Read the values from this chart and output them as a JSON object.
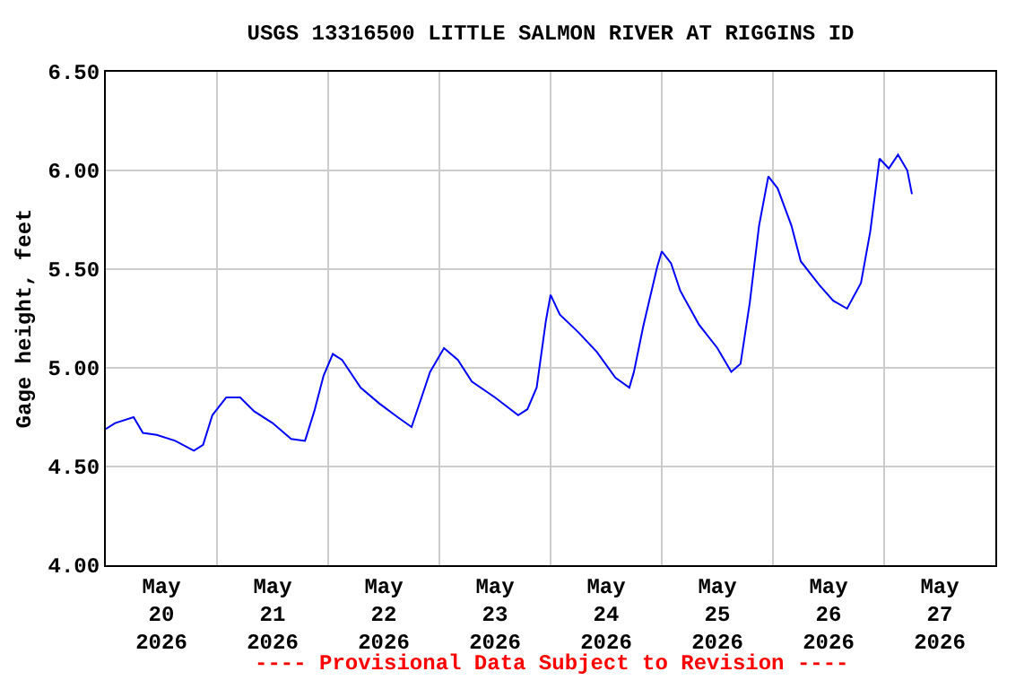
{
  "chart_data": {
    "type": "line",
    "title": "USGS 13316500 LITTLE SALMON RIVER AT RIGGINS ID",
    "ylabel": "Gage height, feet",
    "annotations": [
      "---- Provisional Data Subject to Revision ----"
    ],
    "x": [
      "2026-05-20T00:00",
      "2026-05-20T02:00",
      "2026-05-20T06:00",
      "2026-05-20T08:00",
      "2026-05-20T11:00",
      "2026-05-20T15:00",
      "2026-05-20T19:00",
      "2026-05-20T21:00",
      "2026-05-20T23:00",
      "2026-05-21T02:00",
      "2026-05-21T05:00",
      "2026-05-21T08:00",
      "2026-05-21T12:00",
      "2026-05-21T16:00",
      "2026-05-21T19:00",
      "2026-05-21T21:00",
      "2026-05-21T23:00",
      "2026-05-22T01:00",
      "2026-05-22T03:00",
      "2026-05-22T07:00",
      "2026-05-22T11:00",
      "2026-05-22T15:00",
      "2026-05-22T18:00",
      "2026-05-22T20:00",
      "2026-05-22T22:00",
      "2026-05-23T01:00",
      "2026-05-23T04:00",
      "2026-05-23T07:00",
      "2026-05-23T12:00",
      "2026-05-23T17:00",
      "2026-05-23T19:00",
      "2026-05-23T21:00",
      "2026-05-23T23:00",
      "2026-05-24T00:00",
      "2026-05-24T02:00",
      "2026-05-24T06:00",
      "2026-05-24T10:00",
      "2026-05-24T14:00",
      "2026-05-24T17:00",
      "2026-05-24T18:00",
      "2026-05-24T20:00",
      "2026-05-24T23:00",
      "2026-05-25T00:00",
      "2026-05-25T02:00",
      "2026-05-25T04:00",
      "2026-05-25T08:00",
      "2026-05-25T12:00",
      "2026-05-25T15:00",
      "2026-05-25T17:00",
      "2026-05-25T19:00",
      "2026-05-25T21:00",
      "2026-05-25T23:00",
      "2026-05-26T01:00",
      "2026-05-26T04:00",
      "2026-05-26T06:00",
      "2026-05-26T10:00",
      "2026-05-26T13:00",
      "2026-05-26T16:00",
      "2026-05-26T19:00",
      "2026-05-26T21:00",
      "2026-05-26T23:00",
      "2026-05-27T01:00",
      "2026-05-27T03:00",
      "2026-05-27T05:00",
      "2026-05-27T06:00"
    ],
    "series": [
      {
        "color": "#0000ff",
        "values": [
          4.69,
          4.72,
          4.75,
          4.67,
          4.66,
          4.63,
          4.58,
          4.61,
          4.76,
          4.85,
          4.85,
          4.78,
          4.72,
          4.64,
          4.63,
          4.78,
          4.96,
          5.07,
          5.04,
          4.9,
          4.82,
          4.75,
          4.7,
          4.84,
          4.98,
          5.1,
          5.04,
          4.93,
          4.85,
          4.76,
          4.79,
          4.9,
          5.24,
          5.37,
          5.27,
          5.18,
          5.08,
          4.95,
          4.9,
          4.98,
          5.21,
          5.51,
          5.59,
          5.53,
          5.39,
          5.22,
          5.1,
          4.98,
          5.02,
          5.33,
          5.72,
          5.97,
          5.91,
          5.72,
          5.54,
          5.42,
          5.34,
          5.3,
          5.43,
          5.69,
          6.06,
          6.01,
          6.08,
          6.0,
          5.88
        ]
      }
    ],
    "xlim": [
      "2026-05-20T00:00",
      "2026-05-28T00:00"
    ],
    "xticks": [
      {
        "value": "2026-05-20T12:00",
        "label": "May\n20\n2026"
      },
      {
        "value": "2026-05-21T00:00",
        "label": null
      },
      {
        "value": "2026-05-21T12:00",
        "label": "May\n21\n2026"
      },
      {
        "value": "2026-05-22T00:00",
        "label": null
      },
      {
        "value": "2026-05-22T12:00",
        "label": "May\n22\n2026"
      },
      {
        "value": "2026-05-23T00:00",
        "label": null
      },
      {
        "value": "2026-05-23T12:00",
        "label": "May\n23\n2026"
      },
      {
        "value": "2026-05-24T00:00",
        "label": null
      },
      {
        "value": "2026-05-24T12:00",
        "label": "May\n24\n2026"
      },
      {
        "value": "2026-05-25T00:00",
        "label": null
      },
      {
        "value": "2026-05-25T12:00",
        "label": "May\n25\n2026"
      },
      {
        "value": "2026-05-26T00:00",
        "label": null
      },
      {
        "value": "2026-05-26T12:00",
        "label": "May\n26\n2026"
      },
      {
        "value": "2026-05-27T00:00",
        "label": null
      },
      {
        "value": "2026-05-27T12:00",
        "label": "May\n27\n2026"
      }
    ],
    "ylim": [
      4.0,
      6.5
    ],
    "yticks": [
      {
        "value": 4.0,
        "label": "4.00"
      },
      {
        "value": 4.5,
        "label": "4.50"
      },
      {
        "value": 5.0,
        "label": "5.00"
      },
      {
        "value": 5.5,
        "label": "5.50"
      },
      {
        "value": 6.0,
        "label": "6.00"
      },
      {
        "value": 6.5,
        "label": "6.50"
      }
    ],
    "grid": true
  }
}
